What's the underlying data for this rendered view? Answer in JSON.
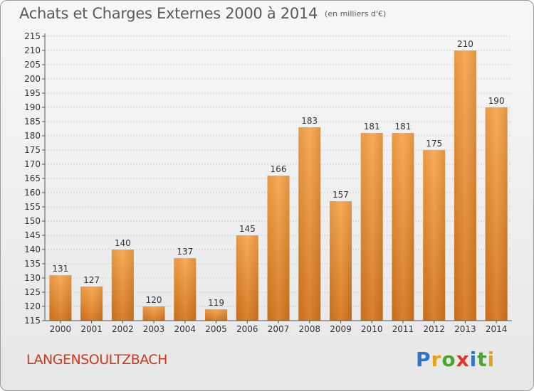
{
  "header": {
    "title": "Achats et Charges Externes 2000 à 2014",
    "subtitle": "(en milliers d'€)"
  },
  "footer": {
    "commune": "LANGENSOULTZBACH",
    "brand": "Proxiti"
  },
  "colors": {
    "bar_top": "#f7a44a",
    "bar_bottom": "#d4751c",
    "axis": "#555555",
    "grid": "#cfcfcf",
    "commune": "#d03a1a"
  },
  "chart_data": {
    "type": "bar",
    "title": "Achats et Charges Externes 2000 à 2014",
    "subtitle": "(en milliers d'€)",
    "categories": [
      "2000",
      "2001",
      "2002",
      "2003",
      "2004",
      "2005",
      "2006",
      "2007",
      "2008",
      "2009",
      "2010",
      "2011",
      "2012",
      "2013",
      "2014"
    ],
    "values": [
      131,
      127,
      140,
      120,
      137,
      119,
      145,
      166,
      183,
      157,
      181,
      181,
      175,
      210,
      190
    ],
    "ylim": [
      115,
      215
    ],
    "yticks": [
      115,
      120,
      125,
      130,
      135,
      140,
      145,
      150,
      155,
      160,
      165,
      170,
      175,
      180,
      185,
      190,
      195,
      200,
      205,
      210,
      215
    ],
    "grid": true,
    "data_labels": true
  }
}
